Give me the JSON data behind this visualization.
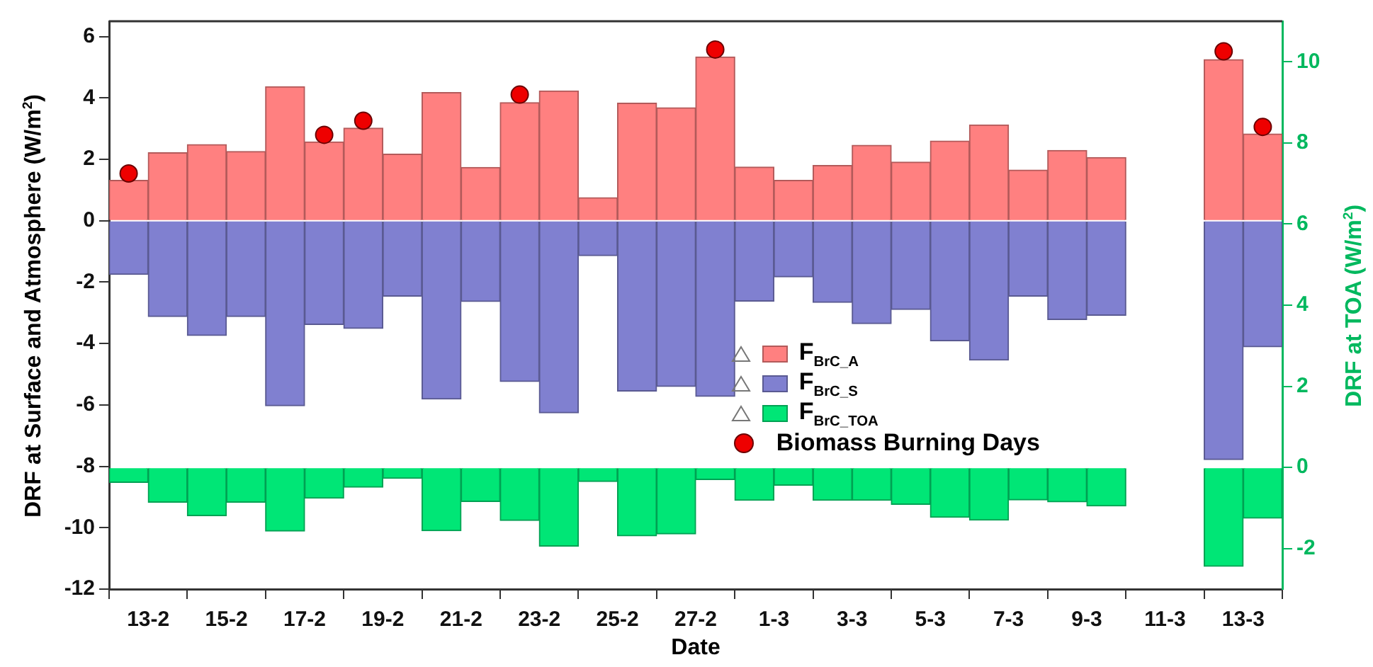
{
  "chart_data": {
    "type": "bar",
    "stacked": true,
    "xlabel": "Date",
    "ylabel": "DRF at Surface and Atmosphere (W/m$^{2}$)",
    "y2label": "DRF at TOA (W/m$^{2}$)",
    "x": [
      "--02-12T12:00",
      "--02-13T12:00",
      "--02-14T12:00",
      "--02-15T12:00",
      "--02-16T12:00",
      "--02-17T12:00",
      "--02-18T12:00",
      "--02-19T12:00",
      "--02-20T12:00",
      "--02-21T12:00",
      "--02-22T12:00",
      "--02-23T12:00",
      "--02-24T12:00",
      "--02-25T12:00",
      "--02-26T12:00",
      "--02-27T12:00",
      "--02-28T12:00",
      "--03-01T12:00",
      "--03-02T12:00",
      "--03-03T12:00",
      "--03-04T12:00",
      "--03-05T12:00",
      "--03-06T12:00",
      "--03-07T12:00",
      "--03-08T12:00",
      "--03-09T12:00",
      "--03-10T12:00",
      "--03-11T12:00",
      "--03-12T12:00",
      "--03-13T12:00"
    ],
    "series": [
      {
        "name": "F$_{BrC_A}$",
        "color": "#ff8080",
        "values": [
          1.32,
          2.22,
          2.48,
          2.26,
          4.37,
          2.57,
          3.02,
          2.17,
          4.18,
          1.74,
          3.85,
          4.23,
          0.75,
          3.83,
          3.68,
          5.34,
          1.75,
          1.32,
          1.8,
          2.46,
          1.91,
          2.6,
          3.12,
          1.65,
          2.29,
          2.06,
          null,
          null,
          5.25,
          2.83
        ]
      },
      {
        "name": "F$_{BrC_S}$",
        "color": "#8080d0",
        "values": [
          -1.75,
          -3.12,
          -3.74,
          -3.12,
          -6.03,
          -3.38,
          -3.51,
          -2.46,
          -5.81,
          -2.63,
          -5.24,
          -6.26,
          -1.14,
          -5.55,
          -5.4,
          -5.72,
          -2.62,
          -1.83,
          -2.66,
          -3.35,
          -2.89,
          -3.91,
          -4.54,
          -2.46,
          -3.22,
          -3.08,
          null,
          null,
          -7.78,
          -4.11
        ]
      },
      {
        "name": "F$_{BrC_TOA}$",
        "color": "#00e676",
        "axis": "y2",
        "values": [
          -0.37,
          -0.86,
          -1.19,
          -0.86,
          -1.57,
          -0.76,
          -0.49,
          -0.27,
          -1.56,
          -0.84,
          -1.31,
          -1.94,
          -0.35,
          -1.69,
          -1.64,
          -0.3,
          -0.81,
          -0.44,
          -0.81,
          -0.81,
          -0.91,
          -1.23,
          -1.3,
          -0.8,
          -0.85,
          -0.95,
          null,
          null,
          -2.44,
          -1.25
        ]
      },
      {
        "name": "Biomass Burning Days",
        "type": "scatter",
        "color": "#ee0000",
        "x": [
          "--02-12T12:00",
          "--02-17T12:00",
          "--02-18T12:00",
          "--02-22T12:00",
          "--02-27T12:00",
          "--03-12T12:00",
          "--03-13T12:00"
        ],
        "values": [
          1.54,
          2.8,
          3.26,
          4.11,
          5.58,
          5.52,
          3.06
        ]
      }
    ],
    "marker": "circle",
    "legend": "center",
    "grid": false,
    "xlim": [
      "--02-12",
      "--03-14"
    ],
    "xticks": [
      {
        "value": "--02-13",
        "label": "13-2"
      },
      {
        "value": "--02-15",
        "label": "15-2"
      },
      {
        "value": "--02-17",
        "label": "17-2"
      },
      {
        "value": "--02-19",
        "label": "19-2"
      },
      {
        "value": "--02-21",
        "label": "21-2"
      },
      {
        "value": "--02-23",
        "label": "23-2"
      },
      {
        "value": "--02-25",
        "label": "25-2"
      },
      {
        "value": "--02-27",
        "label": "27-2"
      },
      {
        "value": "--03-01",
        "label": "1-3"
      },
      {
        "value": "--03-03",
        "label": "3-3"
      },
      {
        "value": "--03-05",
        "label": "5-3"
      },
      {
        "value": "--03-07",
        "label": "7-3"
      },
      {
        "value": "--03-09",
        "label": "9-3"
      },
      {
        "value": "--03-11",
        "label": "11-3"
      },
      {
        "value": "--03-13",
        "label": "13-3"
      }
    ],
    "ylim": [
      -12,
      6.5
    ],
    "yticks": [
      -12,
      -10,
      -8,
      -6,
      -4,
      -2,
      0,
      2,
      4,
      6
    ],
    "y2lim": [
      -3,
      11
    ],
    "y2ticks": [
      -2,
      0,
      2,
      4,
      6,
      8,
      10
    ]
  }
}
